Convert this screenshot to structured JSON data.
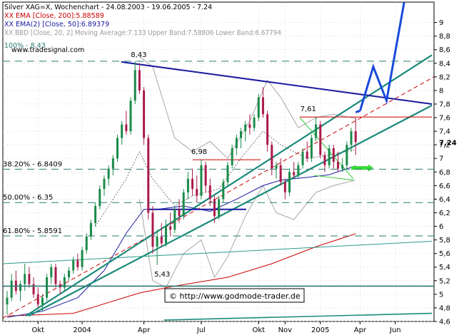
{
  "chart_data": {
    "type": "candlestick",
    "title": "Silver XAG=X, Wochenchart - 24.08.2003 - 19.06.2005 - 7.24",
    "legend": [
      {
        "text": "XX EMA [Close, 200]:5.88589",
        "color": "#cc0000"
      },
      {
        "text": "XX EMA(2) [Close, 50]:6.89379",
        "color": "#1a1aa0"
      },
      {
        "text": "XX BBD [Close, 20, 2] Moving Average:7.133 Upper Band:7.58806 Lower Band:6.67794",
        "color": "#9a9a9a"
      },
      {
        "text": "100% - 8.43",
        "color": "#2a7a72"
      }
    ],
    "watermark": "www.tradesignal.com",
    "copyright": "© http://www.godmode-trader.de",
    "last_value_label": "7,24",
    "ylim": [
      4.6,
      9.3
    ],
    "y_ticks": [
      "4,6",
      "4,8",
      "5",
      "5,2",
      "5,4",
      "5,6",
      "5,8",
      "6",
      "6,2",
      "6,4",
      "6,6",
      "6,8",
      "7",
      "7,2",
      "7,4",
      "7,6",
      "7,8",
      "8",
      "8,2",
      "8,4",
      "8,6",
      "8,8",
      "9"
    ],
    "x_ticks": [
      "Okt",
      "2004",
      "Apr",
      "Jul",
      "Okt",
      "Nov",
      "2005",
      "Apr",
      "Jun"
    ],
    "fib_levels": [
      {
        "label": "38.20% - 6.8409",
        "value": 6.8409
      },
      {
        "label": "50.00% - 6.35",
        "value": 6.35
      },
      {
        "label": "61.80% - 5.8591",
        "value": 5.8591
      }
    ],
    "annotations": [
      {
        "text": "8,43",
        "value": 8.43
      },
      {
        "text": "5,43",
        "value": 5.43
      },
      {
        "text": "6,98",
        "value": 6.98
      },
      {
        "text": "7,61",
        "value": 7.61
      }
    ],
    "candles_ohlc": [
      [
        4.85,
        5.05,
        4.7,
        4.95
      ],
      [
        4.95,
        5.3,
        4.9,
        5.2
      ],
      [
        5.2,
        5.35,
        5.0,
        5.05
      ],
      [
        5.05,
        5.2,
        4.9,
        5.15
      ],
      [
        5.15,
        5.45,
        5.05,
        5.3
      ],
      [
        5.3,
        5.4,
        5.1,
        5.15
      ],
      [
        5.15,
        5.25,
        4.95,
        5.0
      ],
      [
        5.0,
        5.1,
        4.8,
        4.85
      ],
      [
        4.85,
        5.0,
        4.75,
        4.95
      ],
      [
        4.95,
        5.3,
        4.9,
        5.25
      ],
      [
        5.25,
        5.45,
        5.15,
        5.4
      ],
      [
        5.4,
        5.45,
        5.1,
        5.15
      ],
      [
        5.15,
        5.2,
        5.0,
        5.1
      ],
      [
        5.1,
        5.3,
        5.05,
        5.25
      ],
      [
        5.25,
        5.4,
        5.2,
        5.35
      ],
      [
        5.35,
        5.55,
        5.3,
        5.5
      ],
      [
        5.5,
        5.6,
        5.35,
        5.4
      ],
      [
        5.4,
        5.7,
        5.35,
        5.65
      ],
      [
        5.65,
        5.9,
        5.6,
        5.85
      ],
      [
        5.85,
        6.1,
        5.8,
        6.05
      ],
      [
        6.05,
        6.35,
        6.0,
        6.3
      ],
      [
        6.3,
        6.6,
        6.25,
        6.55
      ],
      [
        6.55,
        6.75,
        6.45,
        6.7
      ],
      [
        6.7,
        6.9,
        6.6,
        6.85
      ],
      [
        6.85,
        7.05,
        6.75,
        7.0
      ],
      [
        7.0,
        7.35,
        6.95,
        7.3
      ],
      [
        7.3,
        7.55,
        7.2,
        7.5
      ],
      [
        7.5,
        7.7,
        7.35,
        7.4
      ],
      [
        7.4,
        7.9,
        7.35,
        7.85
      ],
      [
        7.85,
        8.43,
        7.8,
        8.3
      ],
      [
        8.3,
        8.4,
        7.95,
        8.0
      ],
      [
        8.0,
        8.05,
        7.2,
        7.3
      ],
      [
        7.3,
        7.35,
        6.1,
        6.2
      ],
      [
        6.2,
        6.3,
        5.6,
        5.7
      ],
      [
        5.7,
        5.95,
        5.43,
        5.85
      ],
      [
        5.85,
        6.05,
        5.7,
        5.75
      ],
      [
        5.75,
        6.1,
        5.7,
        6.0
      ],
      [
        6.0,
        6.2,
        5.85,
        5.95
      ],
      [
        5.95,
        6.3,
        5.9,
        6.25
      ],
      [
        6.25,
        6.4,
        6.05,
        6.15
      ],
      [
        6.15,
        6.55,
        6.1,
        6.5
      ],
      [
        6.5,
        6.8,
        6.4,
        6.7
      ],
      [
        6.7,
        6.85,
        6.45,
        6.55
      ],
      [
        6.55,
        6.75,
        6.35,
        6.45
      ],
      [
        6.45,
        6.98,
        6.4,
        6.9
      ],
      [
        6.9,
        6.95,
        6.5,
        6.6
      ],
      [
        6.6,
        6.7,
        6.3,
        6.4
      ],
      [
        6.4,
        6.45,
        6.05,
        6.15
      ],
      [
        6.15,
        6.45,
        6.1,
        6.4
      ],
      [
        6.4,
        6.7,
        6.35,
        6.65
      ],
      [
        6.65,
        6.95,
        6.6,
        6.9
      ],
      [
        6.9,
        7.2,
        6.85,
        7.15
      ],
      [
        7.15,
        7.35,
        7.05,
        7.3
      ],
      [
        7.3,
        7.45,
        7.15,
        7.4
      ],
      [
        7.4,
        7.55,
        7.25,
        7.5
      ],
      [
        7.5,
        7.65,
        7.35,
        7.45
      ],
      [
        7.45,
        7.65,
        7.4,
        7.6
      ],
      [
        7.6,
        7.95,
        7.55,
        7.9
      ],
      [
        7.9,
        8.05,
        7.6,
        7.65
      ],
      [
        7.65,
        7.7,
        7.1,
        7.2
      ],
      [
        7.2,
        7.25,
        6.75,
        6.85
      ],
      [
        6.85,
        6.95,
        6.7,
        6.9
      ],
      [
        6.9,
        7.0,
        6.6,
        6.65
      ],
      [
        6.65,
        6.7,
        6.4,
        6.5
      ],
      [
        6.5,
        6.85,
        6.45,
        6.8
      ],
      [
        6.8,
        6.95,
        6.7,
        6.75
      ],
      [
        6.75,
        6.95,
        6.7,
        6.9
      ],
      [
        6.9,
        7.15,
        6.85,
        7.1
      ],
      [
        7.1,
        7.25,
        6.95,
        7.0
      ],
      [
        7.0,
        7.35,
        6.95,
        7.3
      ],
      [
        7.3,
        7.61,
        7.25,
        7.5
      ],
      [
        7.5,
        7.55,
        7.0,
        7.05
      ],
      [
        7.05,
        7.1,
        6.8,
        6.9
      ],
      [
        6.9,
        7.2,
        6.85,
        7.15
      ],
      [
        7.15,
        7.2,
        6.85,
        6.95
      ],
      [
        6.95,
        7.1,
        6.8,
        6.85
      ],
      [
        6.85,
        7.0,
        6.8,
        6.9
      ],
      [
        6.9,
        7.25,
        6.85,
        7.2
      ],
      [
        7.2,
        7.45,
        7.1,
        7.4
      ],
      [
        7.4,
        7.6,
        7.05,
        7.24
      ]
    ],
    "ema200": [
      [
        0,
        4.68
      ],
      [
        15,
        4.72
      ],
      [
        30,
        5.02
      ],
      [
        38,
        5.12
      ],
      [
        50,
        5.25
      ],
      [
        60,
        5.45
      ],
      [
        70,
        5.7
      ],
      [
        79,
        5.89
      ]
    ],
    "ema50": [
      [
        0,
        4.66
      ],
      [
        8,
        4.75
      ],
      [
        16,
        4.95
      ],
      [
        22,
        5.35
      ],
      [
        27,
        5.9
      ],
      [
        31,
        6.25
      ],
      [
        34,
        6.25
      ],
      [
        40,
        6.3
      ],
      [
        46,
        6.22
      ],
      [
        52,
        6.4
      ],
      [
        58,
        6.6
      ],
      [
        62,
        6.68
      ],
      [
        68,
        6.72
      ],
      [
        73,
        6.76
      ],
      [
        79,
        6.89
      ]
    ],
    "bb_ma": [
      [
        20,
        6.0
      ],
      [
        27,
        6.7
      ],
      [
        30,
        7.1
      ],
      [
        33,
        6.7
      ],
      [
        38,
        6.3
      ],
      [
        42,
        6.45
      ],
      [
        48,
        6.55
      ],
      [
        53,
        7.0
      ],
      [
        58,
        7.4
      ],
      [
        62,
        7.2
      ],
      [
        68,
        7.0
      ],
      [
        73,
        7.05
      ],
      [
        79,
        7.13
      ]
    ],
    "bb_upper": [
      [
        30,
        8.5
      ],
      [
        33,
        8.35
      ],
      [
        38,
        7.3
      ],
      [
        42,
        7.1
      ],
      [
        46,
        7.25
      ],
      [
        50,
        7.0
      ],
      [
        55,
        7.55
      ],
      [
        59,
        8.15
      ],
      [
        62,
        7.9
      ],
      [
        66,
        7.45
      ],
      [
        70,
        7.6
      ],
      [
        74,
        7.65
      ],
      [
        79,
        7.59
      ]
    ],
    "bb_lower": [
      [
        30,
        6.4
      ],
      [
        33,
        5.2
      ],
      [
        36,
        5.1
      ],
      [
        40,
        5.6
      ],
      [
        44,
        5.8
      ],
      [
        47,
        5.25
      ],
      [
        50,
        5.55
      ],
      [
        54,
        6.15
      ],
      [
        58,
        6.6
      ],
      [
        61,
        6.2
      ],
      [
        65,
        6.1
      ],
      [
        70,
        6.5
      ],
      [
        74,
        6.6
      ],
      [
        79,
        6.68
      ]
    ],
    "projection": [
      [
        80,
        7.7
      ],
      [
        83,
        8.35
      ],
      [
        86,
        7.85
      ],
      [
        90,
        9.3
      ]
    ]
  }
}
